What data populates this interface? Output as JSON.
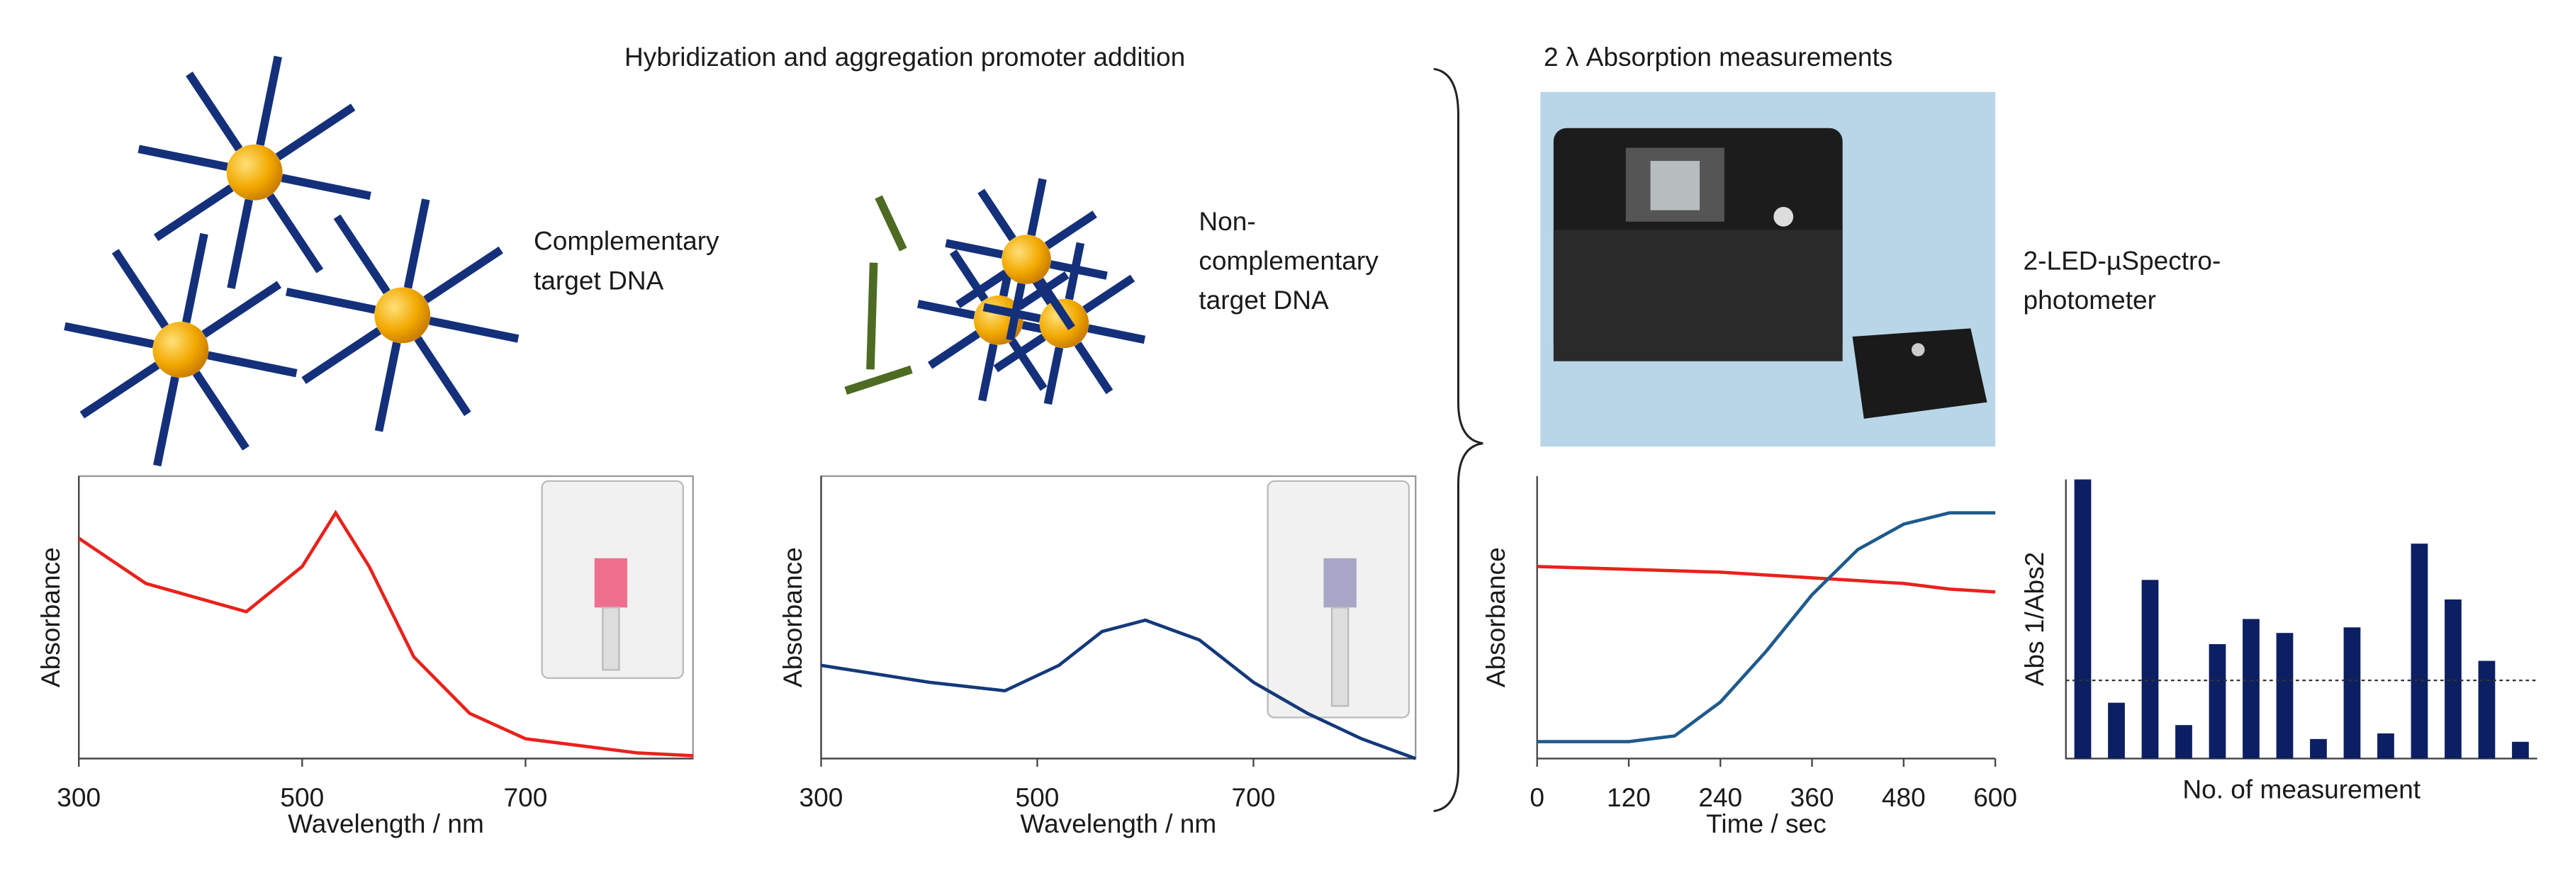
{
  "texts": {
    "top_left_title": "Hybridization and aggregation promoter addition",
    "top_right_title": "2 λ Absorption measurements",
    "complementary_label": [
      "Complementary",
      "target DNA"
    ],
    "non_complementary_label": [
      "Non-",
      "complementary",
      "target DNA"
    ],
    "device_label": [
      "2-LED-µSpectro-",
      "photometer"
    ]
  },
  "chart_data": [
    {
      "type": "line",
      "xlabel": "Wavelength / nm",
      "ylabel": "Absorbance",
      "color": "#e8221b",
      "x": [
        300,
        360,
        450,
        500,
        530,
        560,
        600,
        650,
        700,
        800,
        850
      ],
      "values": [
        0.78,
        0.62,
        0.52,
        0.68,
        0.87,
        0.68,
        0.36,
        0.16,
        0.07,
        0.02,
        0.01
      ],
      "xlim": [
        300,
        850
      ],
      "xticks": [
        300,
        500,
        700
      ],
      "ylim": [
        0,
        1
      ]
    },
    {
      "type": "line",
      "xlabel": "Wavelength / nm",
      "ylabel": "Absorbance",
      "color": "#14397a",
      "x": [
        300,
        400,
        470,
        520,
        560,
        600,
        650,
        700,
        750,
        800,
        850
      ],
      "values": [
        0.33,
        0.27,
        0.24,
        0.33,
        0.45,
        0.49,
        0.42,
        0.27,
        0.16,
        0.07,
        0.0
      ],
      "xlim": [
        300,
        850
      ],
      "xticks": [
        300,
        500,
        700
      ],
      "ylim": [
        0,
        1
      ]
    },
    {
      "type": "line",
      "xlabel": "Time / sec",
      "ylabel": "Absorbance",
      "x": [
        0,
        120,
        180,
        240,
        300,
        360,
        420,
        480,
        540,
        600
      ],
      "series": [
        {
          "color": "#e8221b",
          "values": [
            0.68,
            0.67,
            0.665,
            0.66,
            0.65,
            0.64,
            0.63,
            0.62,
            0.6,
            0.59
          ]
        },
        {
          "color": "#1f5a8c",
          "values": [
            0.06,
            0.06,
            0.08,
            0.2,
            0.38,
            0.58,
            0.74,
            0.83,
            0.87,
            0.87
          ]
        }
      ],
      "xlim": [
        0,
        600
      ],
      "xticks": [
        0,
        120,
        240,
        360,
        480,
        600
      ],
      "ylim": [
        0,
        1
      ]
    },
    {
      "type": "bar",
      "xlabel": "No. of measurement",
      "ylabel": "Abs 1/Abs2",
      "color": "#0d1f63",
      "categories": [
        null,
        null,
        null,
        null,
        null,
        null,
        null,
        null,
        null,
        null,
        null,
        null,
        null,
        null
      ],
      "values": [
        1.0,
        0.2,
        0.64,
        0.12,
        0.41,
        0.5,
        0.45,
        0.07,
        0.47,
        0.09,
        0.77,
        0.57,
        0.35,
        0.06
      ],
      "reference_line": 0.28,
      "ylim": [
        0,
        1
      ]
    }
  ]
}
